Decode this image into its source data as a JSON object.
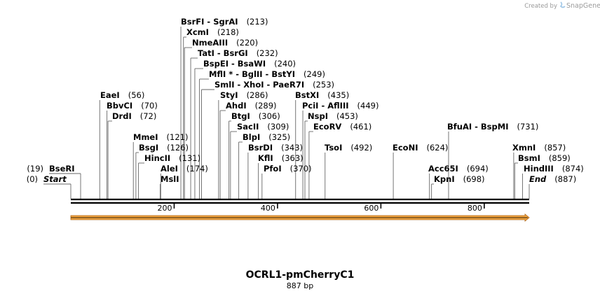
{
  "map": {
    "total_bp": 887,
    "name": "OCRL1-pmCherryC1",
    "length_label": "887 bp",
    "credit_prefix": "Created by",
    "credit_brand": "SnapGene",
    "axis_ticks": [
      200,
      400,
      600,
      800
    ],
    "feature_color": "#f2a640",
    "feature_outline": "#b0671a",
    "feature": {
      "start": 1,
      "end": 887
    },
    "sites": [
      {
        "text": "Start",
        "pos": 0,
        "num": "(0)",
        "row": 0,
        "italic": true,
        "numLeft": true
      },
      {
        "text": "BseRI",
        "pos": 19,
        "num": "(19)",
        "row": 1,
        "numLeft": true
      },
      {
        "text": "EaeI",
        "pos": 56,
        "num": "(56)",
        "row": 8
      },
      {
        "text": "BbvCI",
        "pos": 70,
        "num": "(70)",
        "row": 7
      },
      {
        "text": "DrdI",
        "pos": 72,
        "num": "(72)",
        "row": 6
      },
      {
        "text": "MmeI",
        "pos": 121,
        "num": "(121)",
        "row": 4
      },
      {
        "text": "BsgI",
        "pos": 126,
        "num": "(126)",
        "row": 3
      },
      {
        "text": "HincII",
        "pos": 131,
        "num": "(131)",
        "row": 2
      },
      {
        "text": "MslI",
        "pos": 173,
        "num": "",
        "row": 0
      },
      {
        "text": "AleI",
        "pos": 174,
        "num": "(174)",
        "row": 1
      },
      {
        "text": "SmlI  -  XhoI  -  PaeR7I",
        "pos": 253,
        "num": "(253)",
        "row": 9
      },
      {
        "text": "MflI *  -  BglII  -  BstYI",
        "pos": 249,
        "num": "(249)",
        "row": 10
      },
      {
        "text": "BspEI  -  BsaWI",
        "pos": 240,
        "num": "(240)",
        "row": 11
      },
      {
        "text": "TatI  -  BsrGI",
        "pos": 232,
        "num": "(232)",
        "row": 12
      },
      {
        "text": "NmeAIII",
        "pos": 220,
        "num": "(220)",
        "row": 13
      },
      {
        "text": "XcmI",
        "pos": 218,
        "num": "(218)",
        "row": 14
      },
      {
        "text": "BsrFI  -  SgrAI",
        "pos": 213,
        "num": "(213)",
        "row": 15
      },
      {
        "text": "StyI",
        "pos": 286,
        "num": "(286)",
        "row": 8
      },
      {
        "text": "AhdI",
        "pos": 289,
        "num": "(289)",
        "row": 7
      },
      {
        "text": "BtgI",
        "pos": 306,
        "num": "(306)",
        "row": 6
      },
      {
        "text": "SacII",
        "pos": 309,
        "num": "(309)",
        "row": 5
      },
      {
        "text": "BlpI",
        "pos": 325,
        "num": "(325)",
        "row": 4
      },
      {
        "text": "BsrDI",
        "pos": 343,
        "num": "(343)",
        "row": 3
      },
      {
        "text": "KflI",
        "pos": 363,
        "num": "(363)",
        "row": 2
      },
      {
        "text": "PfoI",
        "pos": 370,
        "num": "(370)",
        "row": 1
      },
      {
        "text": "BstXI",
        "pos": 435,
        "num": "(435)",
        "row": 8
      },
      {
        "text": "PciI  -  AflIII",
        "pos": 449,
        "num": "(449)",
        "row": 7
      },
      {
        "text": "NspI",
        "pos": 453,
        "num": "(453)",
        "row": 6
      },
      {
        "text": "EcoRV",
        "pos": 461,
        "num": "(461)",
        "row": 5
      },
      {
        "text": "TsoI",
        "pos": 492,
        "num": "(492)",
        "row": 3
      },
      {
        "text": "EcoNI",
        "pos": 624,
        "num": "(624)",
        "row": 3
      },
      {
        "text": "BfuAI  -  BspMI",
        "pos": 731,
        "num": "(731)",
        "row": 5
      },
      {
        "text": "Acc65I",
        "pos": 694,
        "num": "(694)",
        "row": 1
      },
      {
        "text": "KpnI",
        "pos": 698,
        "num": "(698)",
        "row": 0
      },
      {
        "text": "XmnI",
        "pos": 857,
        "num": "(857)",
        "row": 3
      },
      {
        "text": "BsmI",
        "pos": 859,
        "num": "(859)",
        "row": 2
      },
      {
        "text": "HindIII",
        "pos": 874,
        "num": "(874)",
        "row": 1
      },
      {
        "text": "End",
        "pos": 887,
        "num": "(887)",
        "row": 0,
        "italic": true
      }
    ]
  }
}
